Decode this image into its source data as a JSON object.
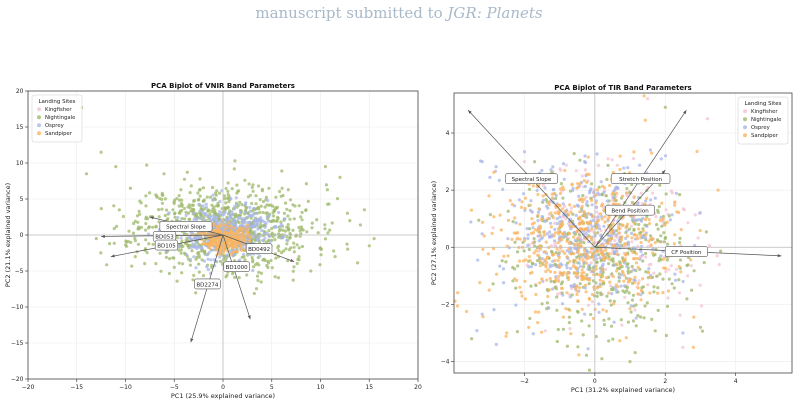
{
  "header": {
    "prefix": "manuscript submitted to ",
    "journal": "JGR: Planets"
  },
  "colors": {
    "Kingfisher": "#f4c2cf",
    "Nightingale": "#9db86a",
    "Osprey": "#a7b6ea",
    "Sandpiper": "#fbb45e",
    "arrow": "#555555",
    "grid": "#ececec",
    "zeroline": "#bdbdbd"
  },
  "chart_data": [
    {
      "type": "scatter",
      "title": "PCA Biplot of VNIR Band Parameters",
      "xlabel": "PC1 (25.9% explained variance)",
      "ylabel": "PC2 (21.1% explained variance)",
      "xlim": [
        -20,
        20
      ],
      "ylim": [
        -20,
        20
      ],
      "xticks": [
        -20,
        -15,
        -10,
        -5,
        0,
        5,
        10,
        15,
        20
      ],
      "yticks": [
        -20,
        -15,
        -10,
        -5,
        0,
        5,
        10,
        15,
        20
      ],
      "grid": true,
      "legend": {
        "title": "Landing Sites",
        "position": "top-left",
        "entries": [
          "Kingfisher",
          "Nightingale",
          "Osprey",
          "Sandpiper"
        ]
      },
      "series": [
        {
          "name": "Nightingale",
          "distribution": {
            "cx": 0.2,
            "cy": 1.0,
            "sx": 4.5,
            "sy": 3.0,
            "n": 900,
            "seed": 11,
            "outliers": [
              [
                -14.5,
                17.7
              ],
              [
                -12.5,
                11.5
              ],
              [
                -14.0,
                8.5
              ],
              [
                -11.0,
                9.5
              ],
              [
                10.5,
                9.5
              ],
              [
                12.0,
                8.0
              ],
              [
                15.5,
                -0.5
              ],
              [
                15.0,
                -1.5
              ],
              [
                13.0,
                2.0
              ],
              [
                -13.0,
                -0.5
              ],
              [
                11.5,
                -3.0
              ],
              [
                -9.0,
                -3.0
              ],
              [
                9.0,
                -5.0
              ],
              [
                -5.0,
                -4.5
              ],
              [
                -9.5,
                6.5
              ],
              [
                14.5,
                3.5
              ]
            ]
          }
        },
        {
          "name": "Osprey",
          "distribution": {
            "cx": 0.0,
            "cy": 0.3,
            "sx": 2.6,
            "sy": 1.9,
            "n": 450,
            "seed": 23,
            "outliers": []
          }
        },
        {
          "name": "Sandpiper",
          "distribution": {
            "cx": 0.2,
            "cy": -0.4,
            "sx": 1.1,
            "sy": 1.0,
            "n": 260,
            "seed": 37,
            "outliers": []
          }
        }
      ],
      "loadings": [
        {
          "label": "Spectral Slope",
          "x": -7.5,
          "y": 2.5,
          "lx": -3.8,
          "ly": 1.2
        },
        {
          "label": "BD053",
          "x": -12.5,
          "y": -0.2,
          "lx": -6.0,
          "ly": -0.2
        },
        {
          "label": "BD105",
          "x": -11.5,
          "y": -3.0,
          "lx": -5.8,
          "ly": -1.4
        },
        {
          "label": "BD2274",
          "x": -3.3,
          "y": -14.9,
          "lx": -1.6,
          "ly": -6.8
        },
        {
          "label": "BD1000",
          "x": 2.8,
          "y": -11.7,
          "lx": 1.4,
          "ly": -4.4
        },
        {
          "label": "BD0492",
          "x": 7.3,
          "y": -3.7,
          "lx": 3.7,
          "ly": -1.9
        }
      ]
    },
    {
      "type": "scatter",
      "title": "PCA Biplot of TIR Band Parameters",
      "xlabel": "PC1 (31.2% explained variance)",
      "ylabel": "PC2 (27.1% explained variance)",
      "xlim": [
        -4.0,
        5.6
      ],
      "ylim": [
        -4.4,
        5.4
      ],
      "xticks": [
        -2,
        0,
        2,
        4
      ],
      "yticks": [
        -4,
        -2,
        0,
        2,
        4
      ],
      "grid": true,
      "legend": {
        "title": "Landing Sites",
        "position": "top-right",
        "entries": [
          "Kingfisher",
          "Nightingale",
          "Osprey",
          "Sandpiper"
        ]
      },
      "series": [
        {
          "name": "Kingfisher",
          "distribution": {
            "cx": 0.4,
            "cy": 0.3,
            "sx": 1.3,
            "sy": 1.3,
            "n": 240,
            "seed": 51,
            "outliers": [
              [
                1.5,
                5.2
              ],
              [
                3.2,
                4.5
              ],
              [
                2.5,
                -3.5
              ],
              [
                -2.0,
                3.0
              ]
            ]
          }
        },
        {
          "name": "Nightingale",
          "distribution": {
            "cx": 0.3,
            "cy": -0.3,
            "sx": 1.25,
            "sy": 1.35,
            "n": 420,
            "seed": 61,
            "outliers": [
              [
                1.0,
                -4.0
              ],
              [
                -3.5,
                -3.2
              ],
              [
                3.0,
                -2.8
              ],
              [
                0.2,
                -3.9
              ],
              [
                2.0,
                4.9
              ]
            ]
          }
        },
        {
          "name": "Osprey",
          "distribution": {
            "cx": -0.3,
            "cy": 0.4,
            "sx": 1.2,
            "sy": 1.25,
            "n": 380,
            "seed": 71,
            "outliers": [
              [
                -3.2,
                3.0
              ],
              [
                -2.8,
                -3.4
              ],
              [
                2.5,
                -3.0
              ]
            ]
          }
        },
        {
          "name": "Sandpiper",
          "distribution": {
            "cx": -0.4,
            "cy": 0.2,
            "sx": 1.35,
            "sy": 1.25,
            "n": 520,
            "seed": 83,
            "outliers": [
              [
                1.4,
                5.3
              ],
              [
                -3.0,
                -1.5
              ],
              [
                3.5,
                2.0
              ],
              [
                -2.5,
                -3.0
              ],
              [
                2.8,
                -3.5
              ]
            ]
          }
        }
      ],
      "loadings": [
        {
          "label": "Spectral Slope",
          "x": -3.6,
          "y": 4.8,
          "lx": -1.8,
          "ly": 2.4
        },
        {
          "label": "Stretch Position",
          "x": 2.6,
          "y": 4.8,
          "lx": 1.3,
          "ly": 2.4
        },
        {
          "label": "Bend Position",
          "x": 2.0,
          "y": 2.7,
          "lx": 1.0,
          "ly": 1.3
        },
        {
          "label": "CF Position",
          "x": 5.3,
          "y": -0.3,
          "lx": 2.6,
          "ly": -0.15
        }
      ]
    }
  ]
}
